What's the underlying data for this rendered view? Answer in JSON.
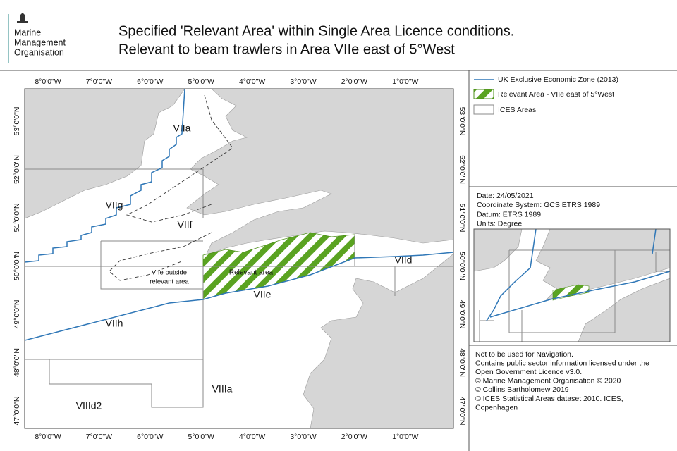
{
  "header": {
    "logo_text": [
      "Marine",
      "Management",
      "Organisation"
    ],
    "title": [
      "Specified 'Relevant Area' within Single Area Licence conditions.",
      "Relevant to beam trawlers in Area VIIe east of 5°West"
    ]
  },
  "map": {
    "longitude_labels": [
      "8°0'0\"W",
      "7°0'0\"W",
      "6°0'0\"W",
      "5°0'0\"W",
      "4°0'0\"W",
      "3°0'0\"W",
      "2°0'0\"W",
      "1°0'0\"W"
    ],
    "latitude_labels": [
      "53°0'0\"N",
      "52°0'0\"N",
      "51°0'0\"N",
      "50°0'0\"N",
      "49°0'0\"N",
      "48°0'0\"N",
      "47°0'0\"N"
    ],
    "area_labels": {
      "viia": "VIIa",
      "viig": "VIIg",
      "viif": "VIIf",
      "viie_outside": [
        "VIIe outside",
        "relevant area"
      ],
      "relevant": "Relevant area",
      "viie": "VIIe",
      "viid": "VIId",
      "viih": "VIIh",
      "viiia": "VIIIa",
      "viiid2": "VIIId2"
    }
  },
  "legend": {
    "items": [
      "UK Exclusive Economic Zone (2013)",
      "Relevant Area - VIIe east of 5°West",
      "ICES Areas"
    ]
  },
  "metadata": [
    "Date: 24/05/2021",
    "Coordinate System: GCS ETRS 1989",
    "Datum: ETRS 1989",
    "Units: Degree"
  ],
  "notes": [
    "Not to be used for Navigation.",
    "Contains public sector information licensed under the",
    "Open Government Licence v3.0.",
    "© Marine Management Organisation © 2020",
    "© Collins Bartholomew 2019",
    "© ICES Statistical Areas dataset 2010. ICES,",
    "Copenhagen"
  ]
}
